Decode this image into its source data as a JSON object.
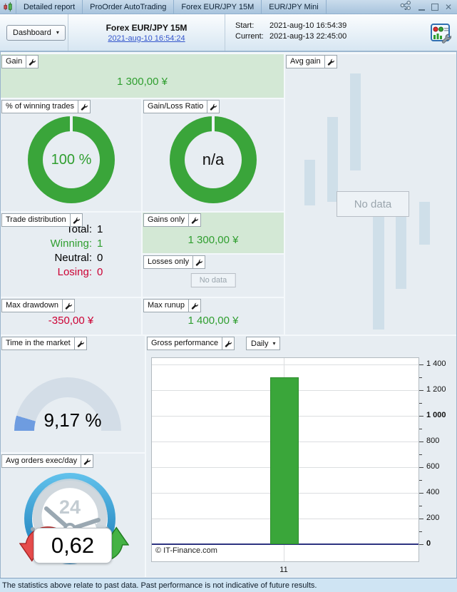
{
  "tabs": [
    "Detailed report",
    "ProOrder AutoTrading",
    "Forex EUR/JPY 15M",
    "EUR/JPY Mini"
  ],
  "header": {
    "dashboard_label": "Dashboard",
    "instrument": "Forex EUR/JPY 15M",
    "session_link": "2021-aug-10 16:54:24",
    "start_label": "Start:",
    "start_value": "2021-aug-10 16:54:39",
    "current_label": "Current:",
    "current_value": "2021-aug-13 22:45:00"
  },
  "panels": {
    "gain": {
      "label": "Gain",
      "value": "1 300,00 ¥"
    },
    "winning_trades": {
      "label": "% of winning trades",
      "value": "100 %"
    },
    "gain_loss_ratio": {
      "label": "Gain/Loss Ratio",
      "value": "n/a"
    },
    "trade_distribution": {
      "label": "Trade distribution",
      "rows": [
        {
          "label": "Total:",
          "value": "1",
          "color": "#000000"
        },
        {
          "label": "Winning:",
          "value": "1",
          "color": "#2f9e2f"
        },
        {
          "label": "Neutral:",
          "value": "0",
          "color": "#000000"
        },
        {
          "label": "Losing:",
          "value": "0",
          "color": "#cc0033"
        }
      ]
    },
    "gains_only": {
      "label": "Gains only",
      "value": "1 300,00 ¥"
    },
    "losses_only": {
      "label": "Losses only",
      "no_data": "No data"
    },
    "max_drawdown": {
      "label": "Max drawdown",
      "value": "-350,00 ¥"
    },
    "max_runup": {
      "label": "Max runup",
      "value": "1 400,00 ¥"
    },
    "avg_gain": {
      "label": "Avg gain",
      "no_data": "No data"
    },
    "time_in_market": {
      "label": "Time in the market",
      "value": "9,17 %",
      "percent": 9.17
    },
    "avg_orders": {
      "label": "Avg orders exec/day",
      "value": "0,62",
      "dial": "24"
    },
    "gross_performance": {
      "label": "Gross performance",
      "period": "Daily"
    }
  },
  "chart_data": {
    "type": "bar",
    "title": "Gross performance",
    "period": "Daily",
    "categories": [
      "11"
    ],
    "values": [
      1300
    ],
    "xlabel": "",
    "ylabel": "",
    "ylim": [
      0,
      1400
    ],
    "ytick_step": 200,
    "minor_tick_step": 100,
    "bold_ticks": [
      1000,
      0
    ],
    "grid": true,
    "legend": false,
    "copyright": "© IT-Finance.com",
    "bar_color": "#3aa63a",
    "bar_border_color": "#2e8d2e",
    "zero_line_color": "#2d3380"
  },
  "status_bar": {
    "text": "The statistics above relate to past data. Past performance is not indicative of future results."
  },
  "colors": {
    "positive": "#2f9e2f",
    "negative": "#cc0033",
    "donut": "#3aa53a",
    "gauge_fill": "#6e9ce0",
    "gauge_track": "#d3dde7",
    "link": "#3355cc",
    "panel_green": "#d3e8d5"
  }
}
